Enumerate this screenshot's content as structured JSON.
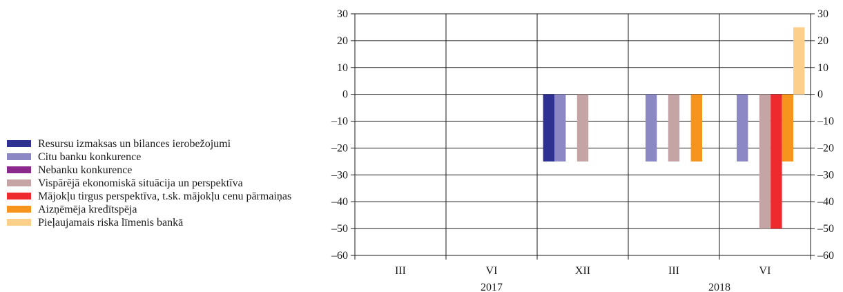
{
  "chart_data": {
    "type": "bar",
    "categories": [
      "III",
      "VI",
      "XII",
      "III",
      "VI"
    ],
    "years": [
      {
        "label": "2017",
        "span": [
          0,
          2
        ]
      },
      {
        "label": "2018",
        "span": [
          3,
          4
        ]
      }
    ],
    "yticks": [
      30,
      20,
      10,
      0,
      -10,
      -20,
      -30,
      -40,
      -50,
      -60
    ],
    "ytick_labels": [
      "30",
      "20",
      "10",
      "0",
      "–10",
      "–20",
      "–30",
      "–40",
      "–50",
      "–60"
    ],
    "ylim": [
      -60,
      30
    ],
    "grid": true,
    "legend": "left",
    "series": [
      {
        "name": "Resursu izmaksas un bilances ierobežojumi",
        "color": "#2e3192",
        "values": [
          0,
          0,
          -25,
          0,
          0
        ]
      },
      {
        "name": "Citu banku konkurence",
        "color": "#8c88c4",
        "values": [
          0,
          0,
          -25,
          -25,
          -25
        ]
      },
      {
        "name": "Nebanku konkurence",
        "color": "#8b2a8c",
        "values": [
          0,
          0,
          0,
          0,
          0
        ]
      },
      {
        "name": "Vispārējā ekonomiskā situācija un perspektīva",
        "color": "#c4a4a4",
        "values": [
          0,
          0,
          -25,
          -25,
          -50
        ]
      },
      {
        "name": "Mājokļu tirgus perspektīva, t.sk.  mājokļu cenu pārmaiņas",
        "color": "#ee2a2e",
        "values": [
          0,
          0,
          0,
          0,
          -50
        ]
      },
      {
        "name": "Aizņēmēja kredītspēja",
        "color": "#f7941d",
        "values": [
          0,
          0,
          0,
          -25,
          -25
        ]
      },
      {
        "name": "Pieļaujamais riska līmenis bankā",
        "color": "#fcd08a",
        "values": [
          0,
          0,
          0,
          0,
          25
        ]
      }
    ]
  }
}
